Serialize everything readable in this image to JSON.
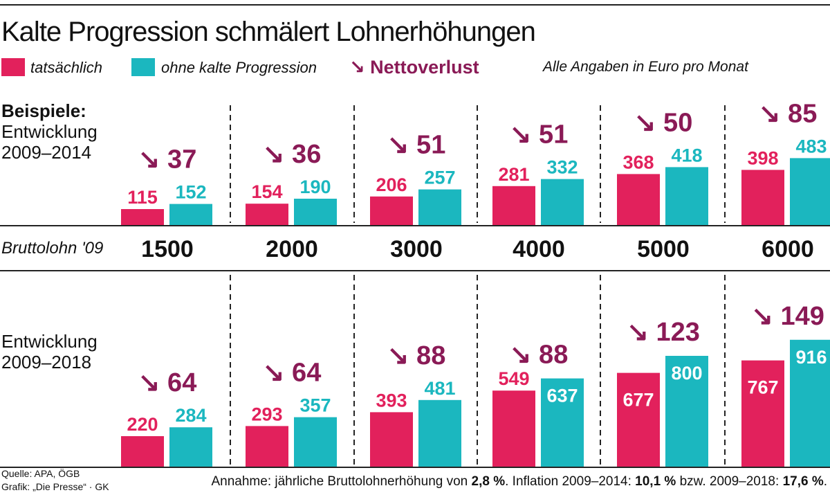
{
  "title": "Kalte Progression schmälert Lohnerhöhungen",
  "legend": {
    "actual": "tatsächlich",
    "without": "ohne kalte Progression",
    "net_loss": "Nettoverlust",
    "note": "Alle Angaben in Euro pro Monat"
  },
  "colors": {
    "actual": "#e2215c",
    "without": "#1bb7bf",
    "net_loss": "#8a1a56"
  },
  "labels": {
    "examples": "Beispiele:",
    "period1_line1": "Entwicklung",
    "period1_line2": "2009–2014",
    "brutto": "Bruttolohn '09",
    "period2_line1": "Entwicklung",
    "period2_line2": "2009–2018"
  },
  "footer": {
    "source": "Quelle: APA, ÖGB",
    "graphic": "Grafik: „Die Presse“ · GK",
    "assumption_prefix": "Annahme: jährliche Bruttolohnerhöhung von ",
    "raise": "2,8 %",
    "inflation_prefix": ". Inflation 2009–2014: ",
    "inflation_2014": "10,1 %",
    "inflation_mid": " bzw. 2009–2018: ",
    "inflation_2018": "17,6 %",
    "suffix": "."
  },
  "chart_data": {
    "type": "bar",
    "categories": [
      "1500",
      "2000",
      "3000",
      "4000",
      "5000",
      "6000"
    ],
    "panels": [
      {
        "period": "2009–2014",
        "series": [
          {
            "name": "tatsächlich",
            "values": [
              115,
              154,
              206,
              281,
              368,
              398
            ]
          },
          {
            "name": "ohne kalte Progression",
            "values": [
              152,
              190,
              257,
              332,
              418,
              483
            ]
          }
        ],
        "net_loss": [
          37,
          36,
          51,
          51,
          50,
          85
        ]
      },
      {
        "period": "2009–2018",
        "series": [
          {
            "name": "tatsächlich",
            "values": [
              220,
              293,
              393,
              549,
              677,
              767
            ]
          },
          {
            "name": "ohne kalte Progression",
            "values": [
              284,
              357,
              481,
              637,
              800,
              916
            ]
          }
        ],
        "net_loss": [
          64,
          64,
          88,
          88,
          123,
          149
        ]
      }
    ],
    "legend_position": "top"
  }
}
